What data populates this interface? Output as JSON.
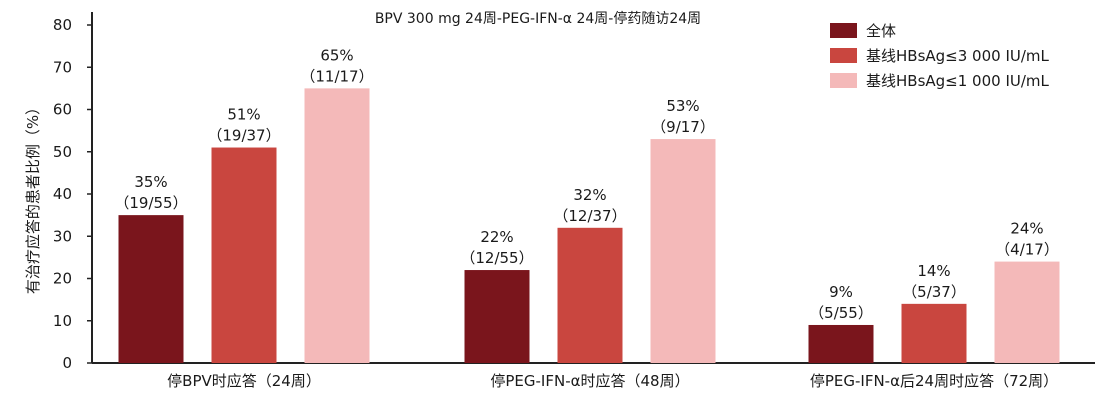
{
  "chart_data": {
    "type": "bar",
    "title": "BPV 300 mg 24周-PEG-IFN-α 24周-停药随访24周",
    "ylabel": "有治疗应答的患者比例（%）",
    "xlabel": "",
    "ylim": [
      0,
      80
    ],
    "yticks": [
      "0",
      "10",
      "20",
      "30",
      "40",
      "50",
      "60",
      "70",
      "80"
    ],
    "legend_position": "top-right",
    "grid": false,
    "categories": [
      "停BPV时应答（24周）",
      "停PEG-IFN-α时应答（48周）",
      "停PEG-IFN-α后24周时应答（72周）"
    ],
    "series": [
      {
        "name": "全体",
        "color": "#7a151c",
        "values": [
          35,
          22,
          9
        ],
        "labels": [
          [
            "35%",
            "（19/55）"
          ],
          [
            "22%",
            "（12/55）"
          ],
          [
            "9%",
            "（5/55）"
          ]
        ]
      },
      {
        "name": "基线HBsAg≤3 000 IU/mL",
        "color": "#c9463f",
        "values": [
          51,
          32,
          14
        ],
        "labels": [
          [
            "51%",
            "（19/37）"
          ],
          [
            "32%",
            "（12/37）"
          ],
          [
            "14%",
            "（5/37）"
          ]
        ]
      },
      {
        "name": "基线HBsAg≤1 000 IU/mL",
        "color": "#f4b9b9",
        "values": [
          65,
          53,
          24
        ],
        "labels": [
          [
            "65%",
            "（11/17）"
          ],
          [
            "53%",
            "（9/17）"
          ],
          [
            "24%",
            "（4/17）"
          ]
        ]
      }
    ]
  }
}
